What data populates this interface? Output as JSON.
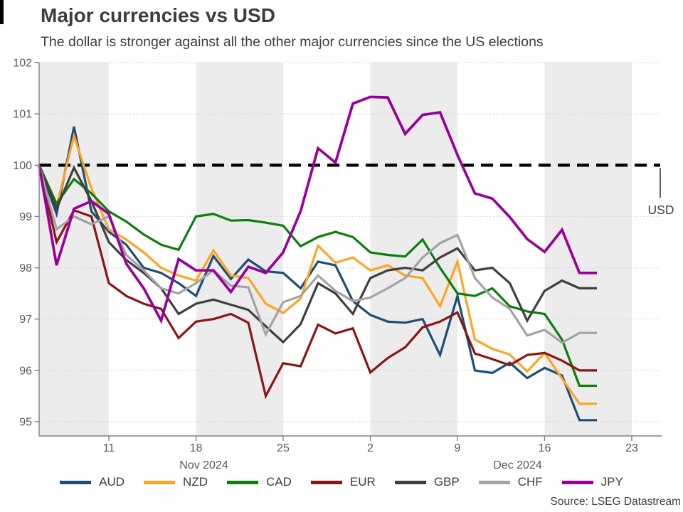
{
  "chart_data": {
    "type": "line",
    "title": "Major currencies vs USD",
    "subtitle": "The dollar is stronger against all the other major currencies since the US elections",
    "x_dates": [
      "2024-11-05",
      "2024-11-06",
      "2024-11-07",
      "2024-11-08",
      "2024-11-11",
      "2024-11-12",
      "2024-11-13",
      "2024-11-14",
      "2024-11-15",
      "2024-11-18",
      "2024-11-19",
      "2024-11-20",
      "2024-11-21",
      "2024-11-22",
      "2024-11-25",
      "2024-11-26",
      "2024-11-27",
      "2024-11-28",
      "2024-11-29",
      "2024-12-02",
      "2024-12-03",
      "2024-12-04",
      "2024-12-05",
      "2024-12-06",
      "2024-12-09",
      "2024-12-10",
      "2024-12-11",
      "2024-12-12",
      "2024-12-13",
      "2024-12-16",
      "2024-12-17",
      "2024-12-18",
      "2024-12-19"
    ],
    "x_ticks": [
      {
        "label": "11",
        "i": 4
      },
      {
        "label": "18",
        "i": 9
      },
      {
        "label": "25",
        "i": 14
      },
      {
        "label": "2",
        "i": 19
      },
      {
        "label": "9",
        "i": 24
      },
      {
        "label": "16",
        "i": 29
      },
      {
        "label": "23",
        "i": 34
      }
    ],
    "month_labels": [
      {
        "label": "Nov 2024",
        "i": 9.45
      },
      {
        "label": "Dec 2024",
        "i": 27.45
      }
    ],
    "ylim": [
      95,
      102
    ],
    "yticks": [
      95,
      96,
      97,
      98,
      99,
      100,
      101,
      102
    ],
    "grid": "horizontal-dotted",
    "shaded_week_bands": [
      [
        0,
        4
      ],
      [
        9,
        14
      ],
      [
        19,
        24
      ],
      [
        29,
        34
      ]
    ],
    "baseline": {
      "label": "USD",
      "value": 100,
      "style": "dashed"
    },
    "legend_position": "bottom",
    "series": [
      {
        "name": "AUD",
        "color": "#1d4f76",
        "values": [
          100,
          99.05,
          100.75,
          99.1,
          98.7,
          98.45,
          98.0,
          97.9,
          97.7,
          97.45,
          98.23,
          97.78,
          98.16,
          97.93,
          97.9,
          97.6,
          98.12,
          98.05,
          97.35,
          97.08,
          96.95,
          96.93,
          97.0,
          96.3,
          97.45,
          96.0,
          95.95,
          96.15,
          95.85,
          96.05,
          95.9,
          95.03,
          95.03
        ]
      },
      {
        "name": "NZD",
        "color": "#ffa424",
        "values": [
          100,
          99.2,
          100.57,
          99.55,
          98.75,
          98.55,
          98.3,
          98.0,
          97.85,
          97.75,
          98.34,
          97.85,
          97.8,
          97.3,
          97.12,
          97.4,
          98.43,
          98.1,
          98.2,
          97.95,
          98.05,
          97.85,
          97.8,
          97.25,
          98.12,
          96.6,
          96.42,
          96.31,
          95.98,
          96.34,
          95.84,
          95.35,
          95.35
        ]
      },
      {
        "name": "CAD",
        "color": "#0a7f0a",
        "values": [
          100,
          99.25,
          99.73,
          99.45,
          99.1,
          98.9,
          98.65,
          98.45,
          98.35,
          99.0,
          99.05,
          98.92,
          98.93,
          98.88,
          98.82,
          98.42,
          98.6,
          98.7,
          98.6,
          98.3,
          98.25,
          98.22,
          98.55,
          98.0,
          97.5,
          97.45,
          97.6,
          97.25,
          97.15,
          97.1,
          96.6,
          95.7,
          95.7
        ]
      },
      {
        "name": "EUR",
        "color": "#8b1515",
        "values": [
          100,
          98.5,
          99.12,
          99.0,
          97.7,
          97.45,
          97.3,
          97.2,
          96.63,
          96.95,
          97.0,
          97.1,
          96.93,
          95.5,
          96.14,
          96.08,
          96.89,
          96.72,
          96.82,
          95.96,
          96.24,
          96.45,
          96.84,
          96.95,
          97.13,
          96.33,
          96.22,
          96.1,
          96.3,
          96.34,
          96.19,
          96.0,
          96.0
        ]
      },
      {
        "name": "GBP",
        "color": "#3f3f3f",
        "values": [
          100,
          99.15,
          99.95,
          99.3,
          98.5,
          98.15,
          97.9,
          97.6,
          97.1,
          97.3,
          97.38,
          97.28,
          97.18,
          96.86,
          96.55,
          96.9,
          97.7,
          97.5,
          97.1,
          97.8,
          97.95,
          98.0,
          97.95,
          98.2,
          98.38,
          97.95,
          98.0,
          97.7,
          96.97,
          97.55,
          97.75,
          97.6,
          97.6
        ]
      },
      {
        "name": "CHF",
        "color": "#a3a3a3",
        "values": [
          100,
          98.75,
          99.0,
          98.85,
          99.0,
          98.25,
          97.95,
          97.6,
          97.5,
          97.7,
          97.95,
          97.65,
          97.62,
          96.7,
          97.33,
          97.45,
          97.85,
          97.55,
          97.35,
          97.42,
          97.6,
          97.8,
          98.2,
          98.48,
          98.64,
          97.8,
          97.42,
          97.2,
          96.68,
          96.79,
          96.54,
          96.73,
          96.73
        ]
      },
      {
        "name": "JPY",
        "color": "#990099",
        "values": [
          100,
          98.05,
          99.15,
          99.3,
          99.05,
          98.08,
          97.6,
          96.97,
          98.17,
          97.95,
          97.95,
          97.53,
          98.02,
          97.9,
          98.3,
          99.1,
          100.33,
          100.05,
          101.2,
          101.33,
          101.32,
          100.61,
          100.98,
          101.03,
          100.2,
          99.45,
          99.35,
          98.99,
          98.56,
          98.31,
          98.74,
          97.9,
          97.9
        ]
      }
    ],
    "colors": {
      "band": "#ececec",
      "grid": "#d2d2d2",
      "axis": "#808080",
      "tick_label": "#595959",
      "baseline": "#000000",
      "text": "#3d3d3d"
    }
  },
  "source": "Source: LSEG Datastream"
}
